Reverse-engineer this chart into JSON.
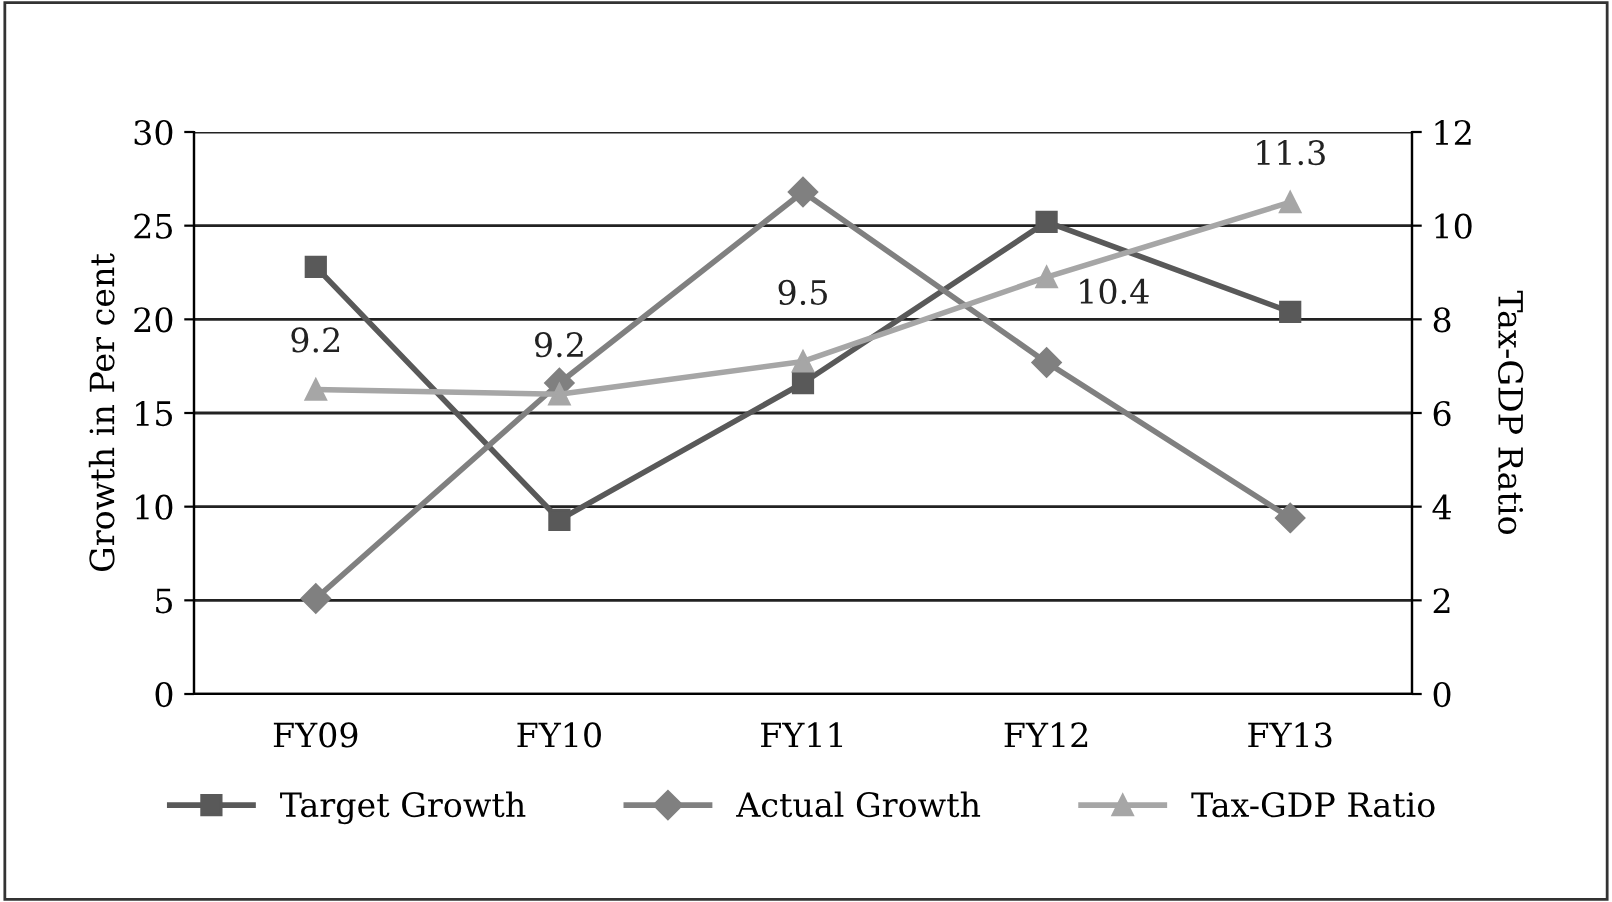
{
  "chart_data": {
    "type": "line",
    "categories": [
      "FY09",
      "FY10",
      "FY11",
      "FY12",
      "FY13"
    ],
    "ylabel": "Growth in Per cent",
    "y2label": "Tax-GDP Ratio",
    "ylim": [
      0,
      30
    ],
    "yticks": [
      0,
      5,
      10,
      15,
      20,
      25,
      30
    ],
    "y2lim": [
      0,
      12
    ],
    "y2ticks": [
      0,
      2,
      4,
      6,
      8,
      10,
      12
    ],
    "grid": "y",
    "legend": "bottom",
    "line_style": "solid",
    "series": [
      {
        "name": "Target Growth",
        "color": "#595959",
        "marker": "square",
        "values": [
          22.8,
          9.3,
          16.6,
          25.2,
          20.4
        ]
      },
      {
        "name": "Actual Growth",
        "color": "#808080",
        "marker": "diamond",
        "values": [
          5.1,
          16.6,
          26.8,
          17.7,
          9.4
        ]
      },
      {
        "name": "Tax-GDP Ratio",
        "color": "#a6a6a6",
        "marker": "triangle",
        "axis": "y2",
        "values": [
          6.5,
          6.4,
          7.1,
          8.9,
          10.5
        ]
      }
    ],
    "annotations": [
      "9.2",
      "9.2",
      "9.5",
      "10.4",
      "11.3"
    ]
  }
}
